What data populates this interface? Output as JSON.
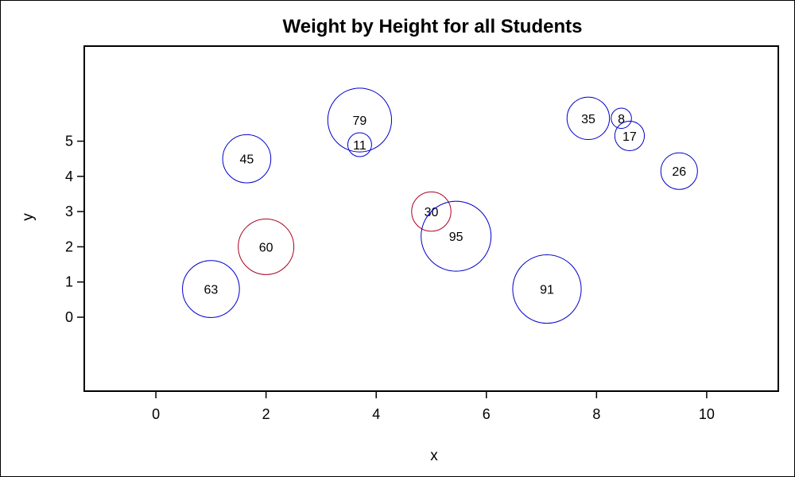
{
  "chart_data": {
    "type": "scatter",
    "subtype": "bubble",
    "title": "Weight by Height for all Students",
    "xlabel": "x",
    "ylabel": "y",
    "xlim": [
      -1.3,
      11.3
    ],
    "ylim": [
      -2.1,
      7.7
    ],
    "xticks": [
      0,
      2,
      4,
      6,
      8,
      10
    ],
    "yticks": [
      0,
      1,
      2,
      3,
      4,
      5
    ],
    "grid": false,
    "legend": "none",
    "colors": {
      "positive": "#0000cc",
      "negative": "#aa0022",
      "text": "#000000"
    },
    "points": [
      {
        "x": 1.0,
        "y": 0.8,
        "size": 63,
        "label": "63",
        "color": "positive"
      },
      {
        "x": 1.65,
        "y": 4.5,
        "size": 45,
        "label": "45",
        "color": "positive"
      },
      {
        "x": 2.0,
        "y": 2.0,
        "size": 60,
        "label": "60",
        "color": "negative"
      },
      {
        "x": 3.7,
        "y": 5.6,
        "size": 79,
        "label": "79",
        "color": "positive"
      },
      {
        "x": 3.7,
        "y": 4.9,
        "size": 11,
        "label": "11",
        "color": "positive"
      },
      {
        "x": 5.0,
        "y": 3.0,
        "size": 30,
        "label": "30",
        "color": "negative"
      },
      {
        "x": 5.45,
        "y": 2.3,
        "size": 95,
        "label": "95",
        "color": "positive"
      },
      {
        "x": 7.1,
        "y": 0.8,
        "size": 91,
        "label": "91",
        "color": "positive"
      },
      {
        "x": 7.85,
        "y": 5.65,
        "size": 35,
        "label": "35",
        "color": "positive"
      },
      {
        "x": 8.45,
        "y": 5.65,
        "size": 8,
        "label": "8",
        "color": "positive"
      },
      {
        "x": 8.6,
        "y": 5.15,
        "size": 17,
        "label": "17",
        "color": "positive"
      },
      {
        "x": 9.5,
        "y": 4.15,
        "size": 26,
        "label": "26",
        "color": "positive"
      }
    ]
  }
}
